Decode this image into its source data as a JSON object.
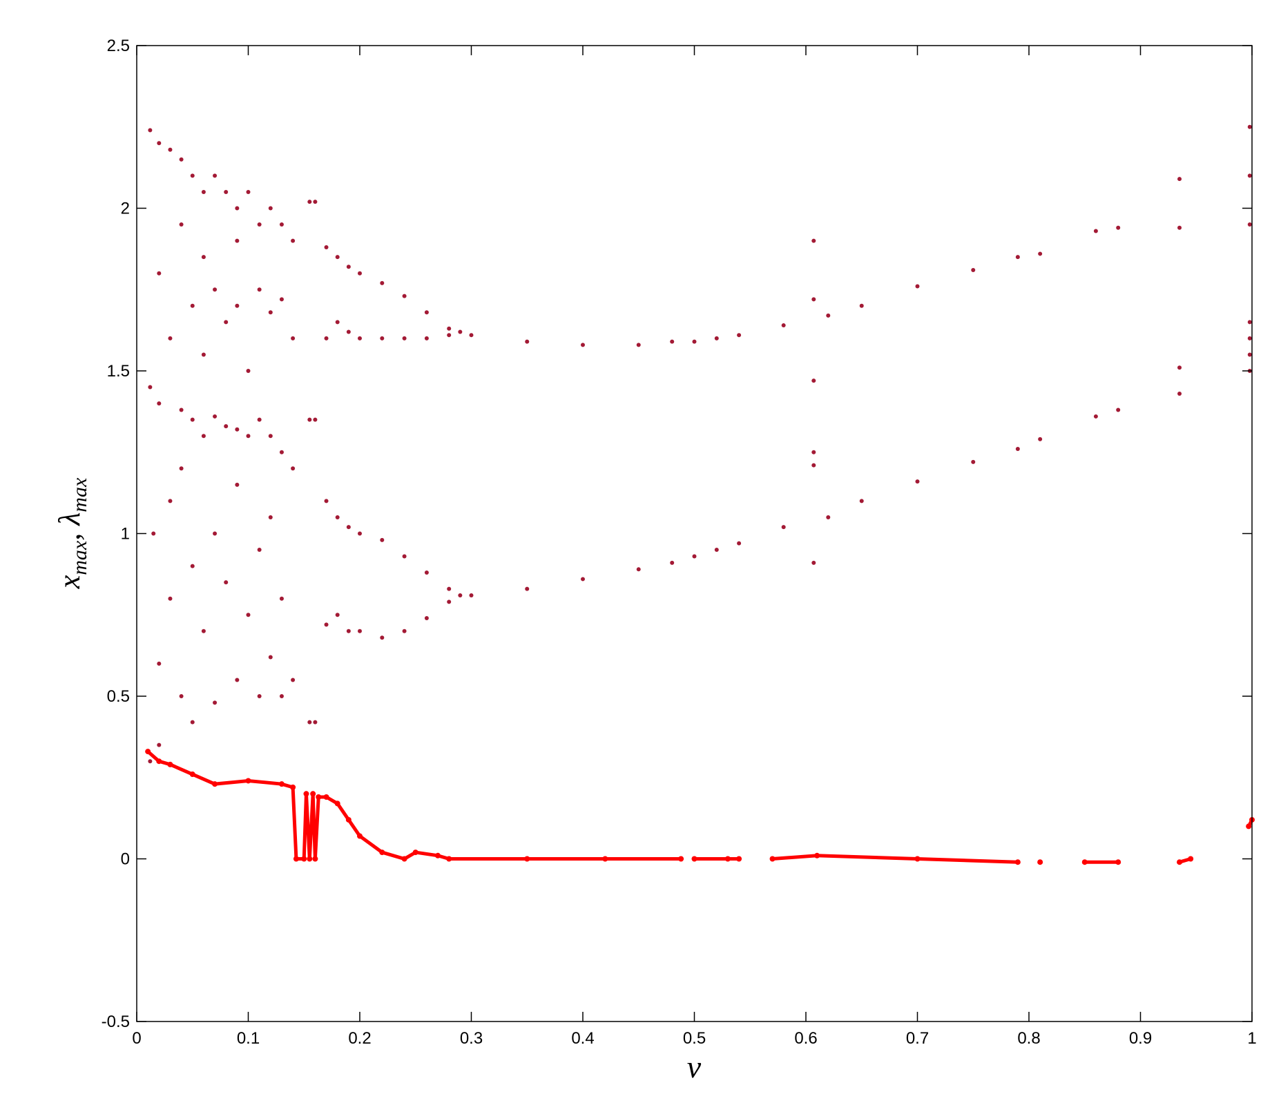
{
  "chart_data": {
    "type": "scatter",
    "xlabel": "ν",
    "ylabel": [
      "x",
      "max",
      ", λ",
      "max"
    ],
    "xlim": [
      0,
      1
    ],
    "ylim": [
      -0.5,
      2.5
    ],
    "xticks": [
      0,
      0.1,
      0.2,
      0.3,
      0.4,
      0.5,
      0.6,
      0.7,
      0.8,
      0.9,
      1
    ],
    "yticks": [
      -0.5,
      0,
      0.5,
      1,
      1.5,
      2,
      2.5
    ],
    "series": [
      {
        "color": "#a31a35",
        "mode": "markers",
        "x": [
          0.012,
          0.012,
          0.012,
          0.015,
          0.02,
          0.02,
          0.02,
          0.02,
          0.02,
          0.03,
          0.03,
          0.03,
          0.03,
          0.04,
          0.04,
          0.04,
          0.04,
          0.04,
          0.05,
          0.05,
          0.05,
          0.05,
          0.05,
          0.06,
          0.06,
          0.06,
          0.06,
          0.06,
          0.07,
          0.07,
          0.07,
          0.07,
          0.07,
          0.08,
          0.08,
          0.08,
          0.08,
          0.09,
          0.09,
          0.09,
          0.09,
          0.09,
          0.09,
          0.1,
          0.1,
          0.1,
          0.1,
          0.11,
          0.11,
          0.11,
          0.11,
          0.11,
          0.12,
          0.12,
          0.12,
          0.12,
          0.12,
          0.13,
          0.13,
          0.13,
          0.13,
          0.13,
          0.14,
          0.14,
          0.14,
          0.14,
          0.155,
          0.16,
          0.155,
          0.16,
          0.155,
          0.16,
          0.17,
          0.17,
          0.17,
          0.17,
          0.18,
          0.18,
          0.18,
          0.18,
          0.19,
          0.19,
          0.19,
          0.19,
          0.2,
          0.2,
          0.2,
          0.2,
          0.22,
          0.22,
          0.22,
          0.22,
          0.24,
          0.24,
          0.24,
          0.24,
          0.26,
          0.26,
          0.26,
          0.26,
          0.28,
          0.28,
          0.28,
          0.28,
          0.29,
          0.29,
          0.3,
          0.3,
          0.35,
          0.35,
          0.4,
          0.4,
          0.45,
          0.45,
          0.48,
          0.48,
          0.5,
          0.5,
          0.52,
          0.52,
          0.54,
          0.54,
          0.58,
          0.58,
          0.607,
          0.607,
          0.607,
          0.607,
          0.607,
          0.607,
          0.62,
          0.62,
          0.65,
          0.65,
          0.7,
          0.7,
          0.75,
          0.75,
          0.79,
          0.79,
          0.81,
          0.81,
          0.86,
          0.86,
          0.88,
          0.88,
          0.935,
          0.935,
          0.935,
          0.935,
          0.998,
          0.998,
          0.998,
          0.998,
          0.998,
          0.998,
          0.998
        ],
        "y": [
          2.24,
          1.45,
          0.3,
          1.0,
          2.2,
          1.8,
          1.4,
          0.6,
          0.35,
          2.18,
          1.6,
          1.1,
          0.8,
          2.15,
          1.95,
          1.38,
          1.2,
          0.5,
          2.1,
          1.7,
          1.35,
          0.9,
          0.42,
          2.05,
          1.85,
          1.55,
          1.3,
          0.7,
          2.1,
          1.75,
          1.36,
          1.0,
          0.48,
          2.05,
          1.65,
          1.33,
          0.85,
          2.0,
          1.9,
          1.7,
          1.32,
          1.15,
          0.55,
          2.05,
          1.5,
          1.3,
          0.75,
          1.95,
          1.75,
          1.35,
          0.95,
          0.5,
          2.0,
          1.68,
          1.3,
          1.05,
          0.62,
          1.95,
          1.72,
          1.25,
          0.8,
          0.5,
          1.9,
          1.6,
          1.2,
          0.55,
          2.02,
          2.02,
          1.35,
          1.35,
          0.42,
          0.42,
          1.88,
          1.6,
          1.1,
          0.72,
          1.85,
          1.65,
          1.05,
          0.75,
          1.82,
          1.62,
          1.02,
          0.7,
          1.8,
          1.6,
          1.0,
          0.7,
          1.77,
          1.6,
          0.98,
          0.68,
          1.73,
          1.6,
          0.93,
          0.7,
          1.68,
          1.6,
          0.88,
          0.74,
          1.63,
          1.61,
          0.83,
          0.79,
          1.62,
          0.81,
          1.61,
          0.81,
          1.59,
          0.83,
          1.58,
          0.86,
          1.58,
          0.89,
          1.59,
          0.91,
          1.59,
          0.93,
          1.6,
          0.95,
          1.61,
          0.97,
          1.64,
          1.02,
          1.9,
          1.72,
          1.47,
          1.25,
          1.21,
          0.91,
          1.67,
          1.05,
          1.7,
          1.1,
          1.76,
          1.16,
          1.81,
          1.22,
          1.85,
          1.26,
          1.86,
          1.29,
          1.93,
          1.36,
          1.94,
          1.38,
          2.09,
          1.94,
          1.51,
          1.43,
          2.25,
          2.1,
          1.95,
          1.65,
          1.6,
          1.55,
          1.5
        ]
      },
      {
        "color": "#ff0000",
        "mode": "lines+markers",
        "x": [
          0.01,
          0.02,
          0.03,
          0.05,
          0.07,
          0.1,
          0.13,
          0.14,
          0.143,
          0.15,
          0.152,
          0.155,
          0.158,
          0.16,
          0.163,
          0.17,
          0.18,
          0.19,
          0.2,
          0.22,
          0.24,
          0.25,
          0.27,
          0.28,
          0.35,
          0.42,
          0.488,
          0.49,
          0.5,
          0.53,
          0.54,
          0.55,
          0.57,
          0.61,
          0.7,
          0.79,
          0.8,
          0.81,
          0.82,
          0.85,
          0.88,
          0.89,
          0.935,
          0.945,
          0.95,
          0.997,
          1.0
        ],
        "y": [
          0.33,
          0.3,
          0.29,
          0.26,
          0.23,
          0.24,
          0.23,
          0.22,
          0,
          0,
          0.2,
          0,
          0.2,
          0,
          0.19,
          0.19,
          0.17,
          0.12,
          0.07,
          0.02,
          0,
          0.02,
          0.01,
          0,
          0,
          0,
          0,
          null,
          0,
          0,
          0,
          null,
          0,
          0.01,
          0,
          -0.01,
          null,
          -0.01,
          null,
          -0.01,
          -0.01,
          null,
          -0.01,
          0,
          null,
          0.1,
          0.12
        ]
      }
    ]
  }
}
